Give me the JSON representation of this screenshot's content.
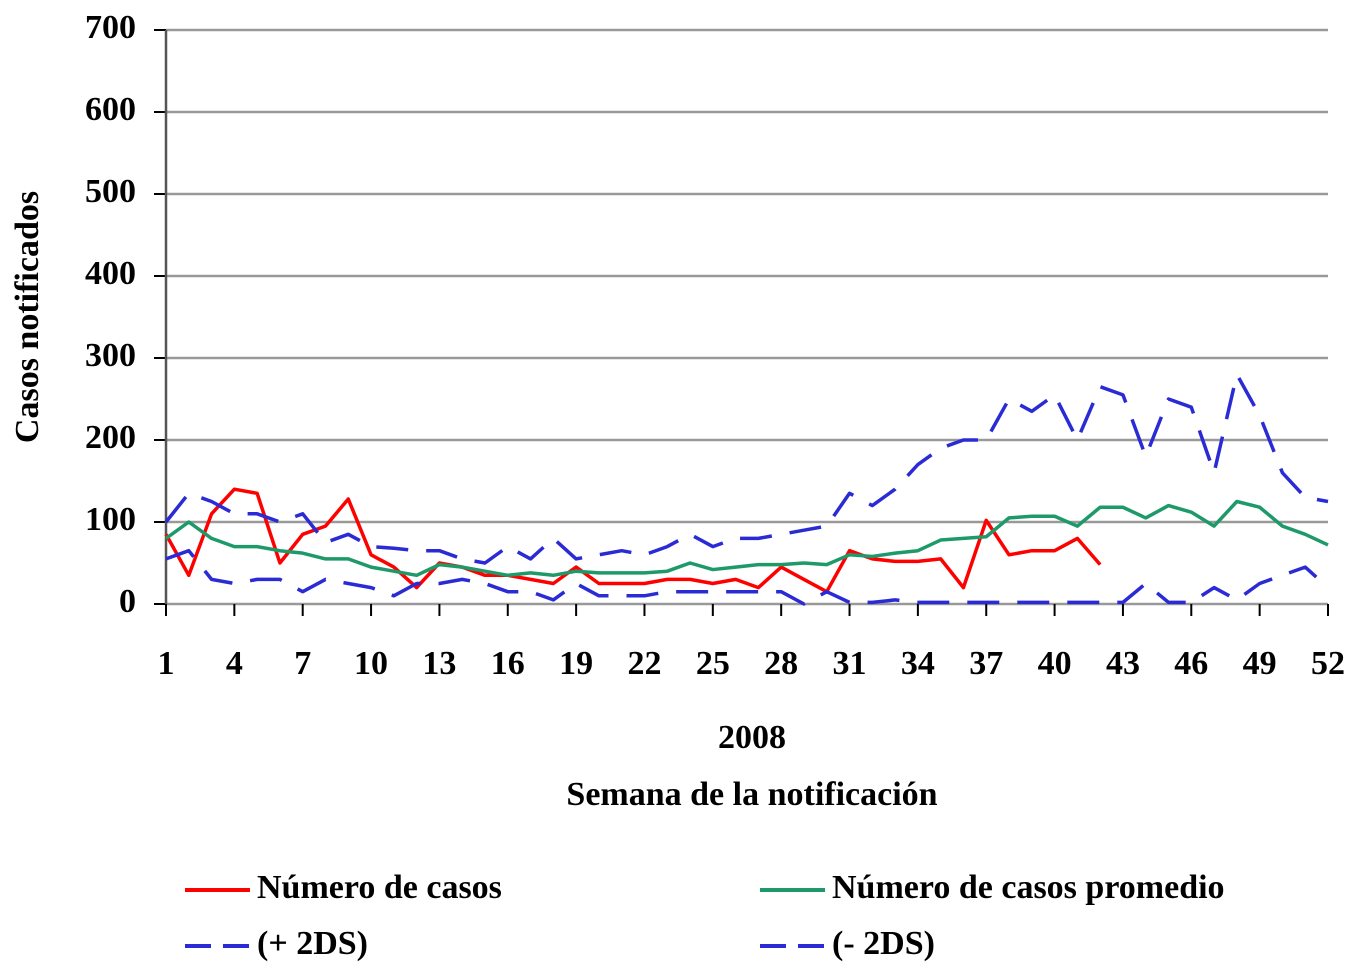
{
  "chart_data": {
    "type": "line",
    "ylabel": "Casos notificados",
    "xlabel": "Semana de la notificación",
    "annotations": [
      "2008"
    ],
    "x": [
      1,
      2,
      3,
      4,
      5,
      6,
      7,
      8,
      9,
      10,
      11,
      12,
      13,
      14,
      15,
      16,
      17,
      18,
      19,
      20,
      21,
      22,
      23,
      24,
      25,
      26,
      27,
      28,
      29,
      30,
      31,
      32,
      33,
      34,
      35,
      36,
      37,
      38,
      39,
      40,
      41,
      42,
      43,
      44,
      45,
      46,
      47,
      48,
      49,
      50,
      51,
      52
    ],
    "xlim": [
      1,
      52
    ],
    "xticks": [
      1,
      4,
      7,
      10,
      13,
      16,
      19,
      22,
      25,
      28,
      31,
      34,
      37,
      40,
      43,
      46,
      49,
      52
    ],
    "ylim": [
      0,
      700
    ],
    "yticks": [
      0,
      100,
      200,
      300,
      400,
      500,
      600,
      700
    ],
    "grid": true,
    "series": [
      {
        "name": "Número de casos",
        "color": "#ff0000",
        "dash": "solid",
        "values": [
          85,
          35,
          110,
          140,
          135,
          50,
          85,
          95,
          128,
          60,
          45,
          20,
          50,
          45,
          35,
          35,
          30,
          25,
          45,
          25,
          25,
          25,
          30,
          30,
          25,
          30,
          20,
          45,
          30,
          15,
          65,
          55,
          52,
          52,
          55,
          20,
          102,
          60,
          65,
          65,
          80,
          48,
          null,
          null,
          null,
          null,
          null,
          null,
          null,
          null,
          null,
          null
        ]
      },
      {
        "name": "Número de casos promedio",
        "color": "#1e9a6a",
        "dash": "solid",
        "values": [
          80,
          100,
          80,
          70,
          70,
          65,
          62,
          55,
          55,
          45,
          40,
          35,
          48,
          45,
          40,
          35,
          38,
          35,
          40,
          38,
          38,
          38,
          40,
          50,
          42,
          45,
          48,
          48,
          50,
          48,
          60,
          58,
          62,
          65,
          78,
          80,
          82,
          105,
          107,
          107,
          95,
          118,
          118,
          105,
          120,
          112,
          95,
          125,
          118,
          95,
          85,
          72
        ]
      },
      {
        "name": "(+ 2DS)",
        "color": "#2b2bd6",
        "dash": "dashed",
        "values": [
          100,
          135,
          125,
          110,
          110,
          100,
          110,
          75,
          85,
          70,
          68,
          65,
          65,
          55,
          50,
          70,
          55,
          80,
          55,
          60,
          65,
          60,
          70,
          85,
          70,
          80,
          80,
          85,
          90,
          95,
          135,
          120,
          140,
          170,
          190,
          200,
          200,
          250,
          235,
          255,
          200,
          265,
          255,
          180,
          250,
          240,
          160,
          280,
          230,
          160,
          130,
          125
        ]
      },
      {
        "name": "(- 2DS)",
        "color": "#2b2bd6",
        "dash": "dashed",
        "values": [
          55,
          65,
          30,
          25,
          30,
          30,
          15,
          30,
          25,
          20,
          10,
          25,
          25,
          30,
          25,
          15,
          15,
          5,
          25,
          10,
          10,
          10,
          15,
          15,
          15,
          15,
          15,
          15,
          0,
          15,
          2,
          2,
          5,
          2,
          2,
          2,
          2,
          2,
          2,
          2,
          2,
          2,
          2,
          25,
          2,
          2,
          20,
          5,
          25,
          35,
          45,
          20
        ]
      }
    ]
  }
}
